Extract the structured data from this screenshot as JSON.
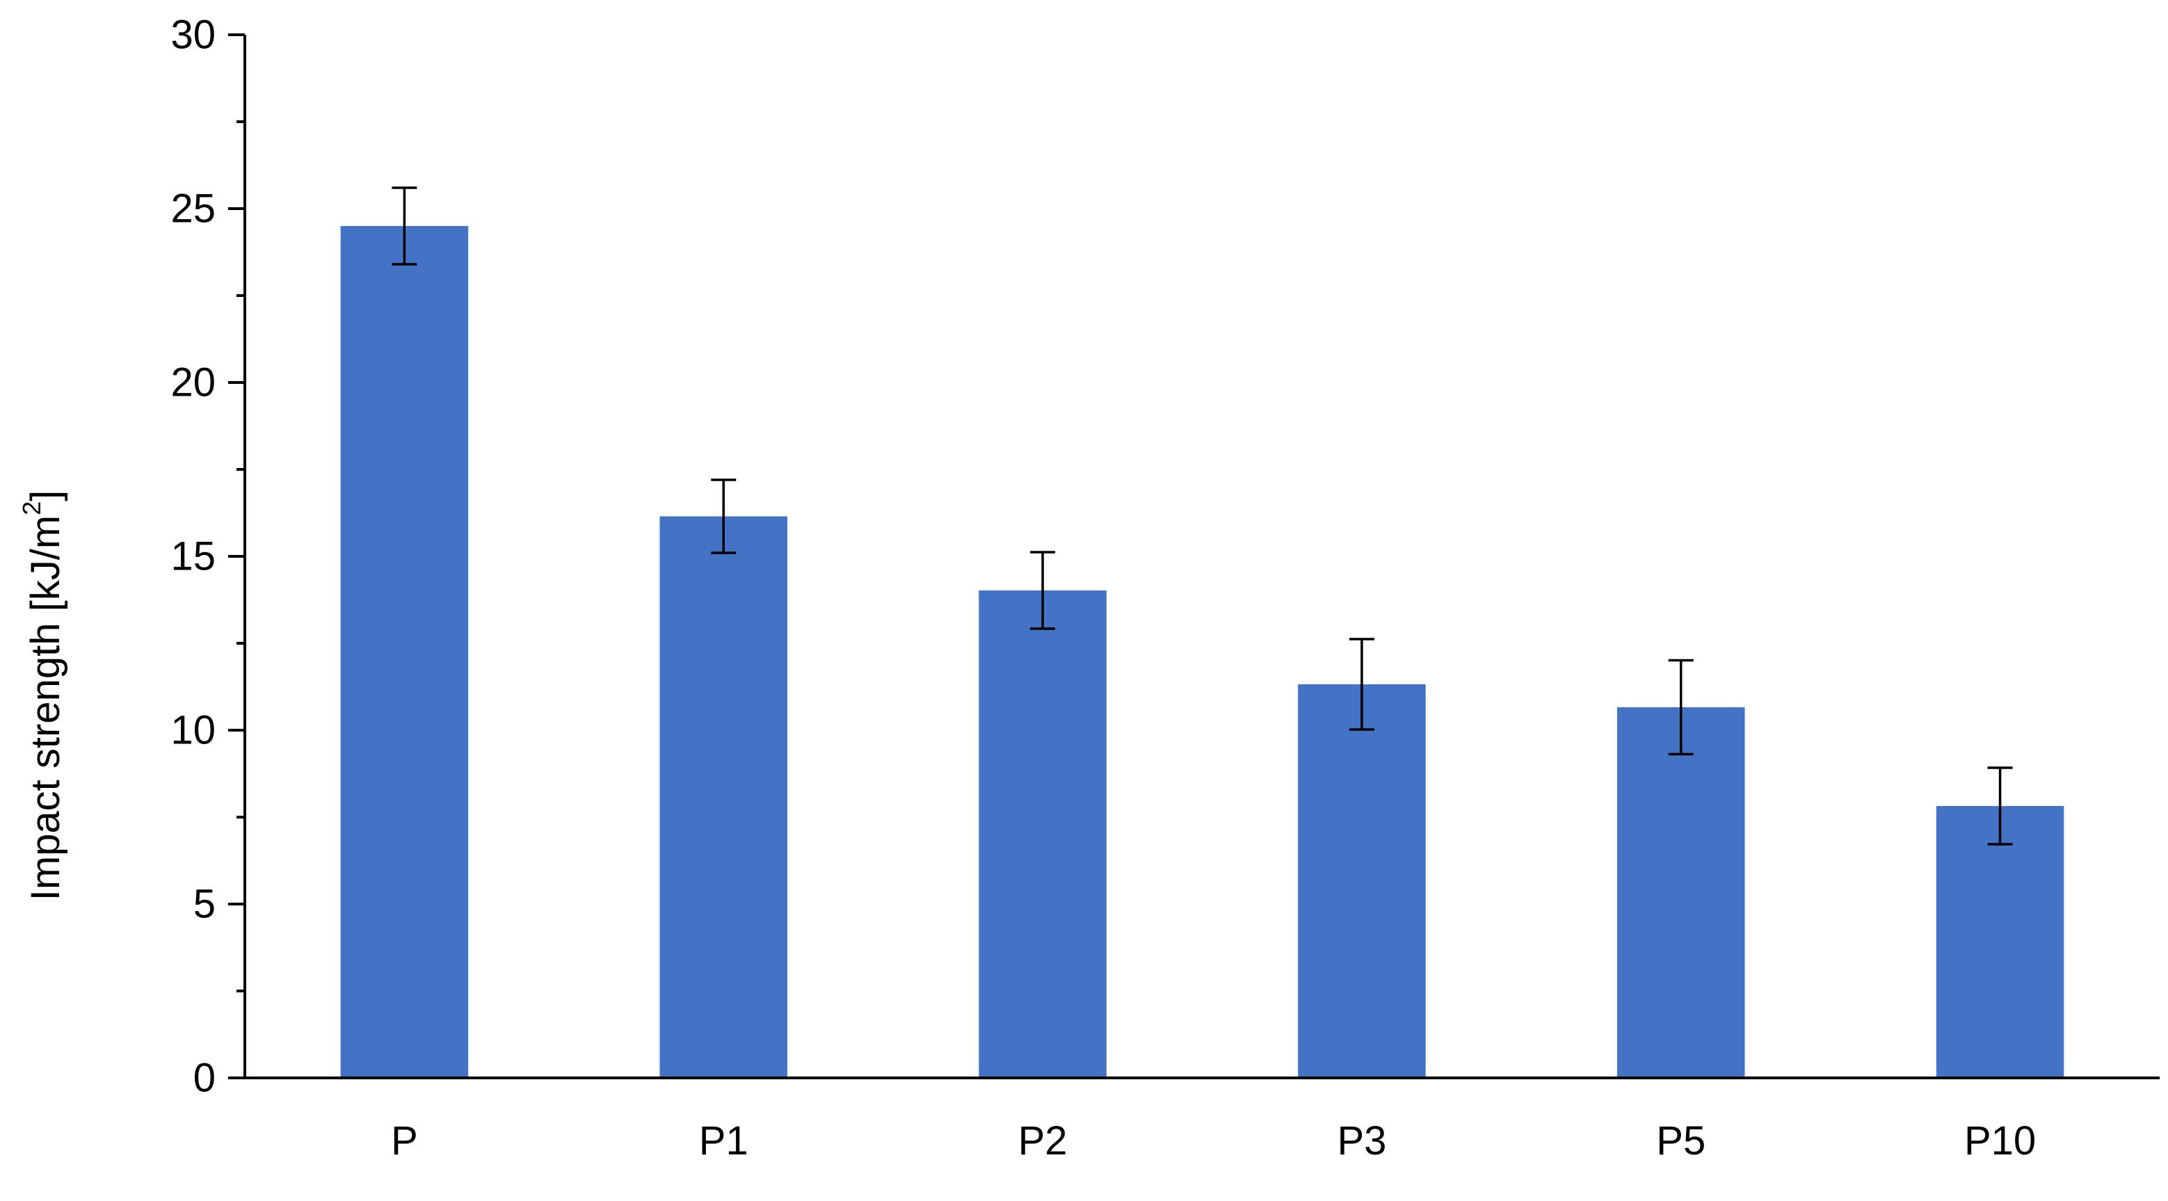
{
  "chart_data": {
    "type": "bar",
    "categories": [
      "P",
      "P1",
      "P2",
      "P3",
      "P5",
      "P10"
    ],
    "values": [
      24.5,
      16.15,
      14.02,
      11.32,
      10.66,
      7.82
    ],
    "errors": [
      1.1,
      1.05,
      1.1,
      1.3,
      1.35,
      1.1
    ],
    "title": "",
    "xlabel": "",
    "ylabel": "Impact strength [kJ/m",
    "ylabel_superscript": "2",
    "ylabel_suffix": "]",
    "ylim": [
      0,
      30
    ],
    "yticks": [
      0,
      5,
      10,
      15,
      20,
      25,
      30
    ],
    "ytick_labels": [
      "0",
      "5",
      "10",
      "15",
      "20",
      "25",
      "30"
    ],
    "minor_ytick_step": 2.5,
    "grid": false,
    "legend": "none",
    "bar_color": "#4472C4"
  }
}
